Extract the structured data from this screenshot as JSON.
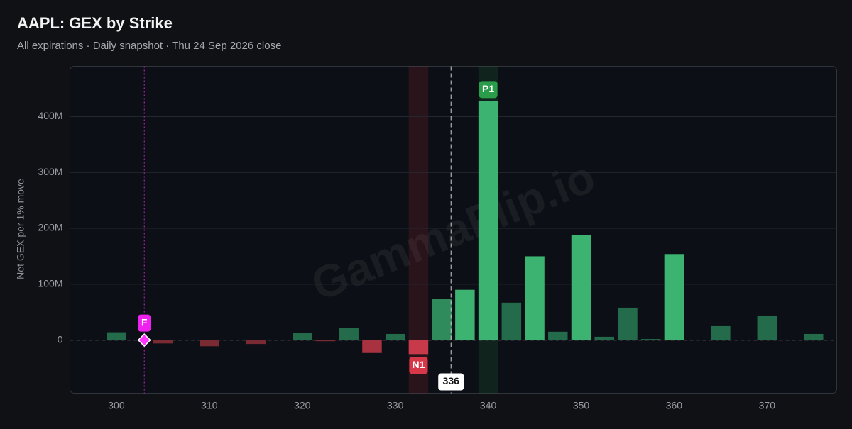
{
  "chart_data": {
    "type": "bar",
    "title": "AAPL: GEX by Strike",
    "subtitle": "All expirations · Daily snapshot · Thu 24 Sep 2026 close",
    "y_label": "Net GEX per 1% move",
    "watermark": "GammaFlip.io",
    "x": [
      300,
      305,
      310,
      315,
      320,
      322.5,
      325,
      327.5,
      330,
      332.5,
      335,
      337.5,
      340,
      342.5,
      345,
      347.5,
      350,
      352.5,
      355,
      357.5,
      360,
      365,
      370,
      375
    ],
    "values": [
      14000000,
      -6000000,
      -11000000,
      -7000000,
      13000000,
      -2000000,
      22000000,
      -23000000,
      11000000,
      -25000000,
      74000000,
      90000000,
      428000000,
      67000000,
      150000000,
      15000000,
      188000000,
      6000000,
      58000000,
      2000000,
      154000000,
      25000000,
      44000000,
      11000000
    ],
    "colors": [
      "#236b4a",
      "#7a2a33",
      "#7a2a33",
      "#7a2a33",
      "#236b4a",
      "#7a2a33",
      "#236b4a",
      "#a8323f",
      "#236b4a",
      "#c8394a",
      "#2f8a5c",
      "#3cb371",
      "#3cb371",
      "#236b4a",
      "#3cb371",
      "#236b4a",
      "#3cb371",
      "#236b4a",
      "#236b4a",
      "#236b4a",
      "#3cb371",
      "#236b4a",
      "#236b4a",
      "#236b4a"
    ],
    "xlim": [
      295,
      377.5
    ],
    "xticks": [
      300,
      310,
      320,
      330,
      340,
      350,
      360,
      370
    ],
    "ylim": [
      -95000000,
      490000000
    ],
    "yticks": [
      {
        "value": 0,
        "label": "0"
      },
      {
        "value": 100000000,
        "label": "100M"
      },
      {
        "value": 200000000,
        "label": "200M"
      },
      {
        "value": 300000000,
        "label": "300M"
      },
      {
        "value": 400000000,
        "label": "400M"
      }
    ],
    "grid": true,
    "spot": 336,
    "flip": {
      "x": 303,
      "label": "F"
    },
    "levels": [
      {
        "label": "P1",
        "x": 340,
        "color": "#2a9d4a"
      },
      {
        "label": "N1",
        "x": 332.5,
        "color": "#d6384a"
      }
    ]
  }
}
